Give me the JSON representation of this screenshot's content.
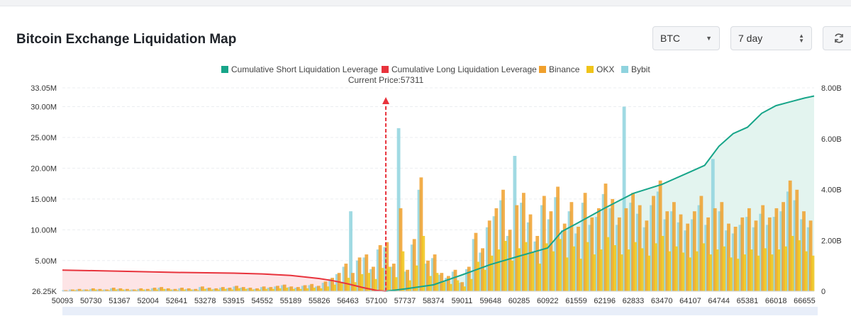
{
  "header": {
    "title": "Bitcoin Exchange Liquidation Map",
    "coin_select": "BTC",
    "range_select": "7 day"
  },
  "colors": {
    "short_line": "#17a589",
    "long_line": "#e8333c",
    "binance": "#f0a02c",
    "okx": "#f0c419",
    "bybit": "#8fd3de",
    "short_fill": "#e3f4ef",
    "long_fill": "#fde4e6",
    "current_price_marker": "#e8333c"
  },
  "chart_data": {
    "type": "bar",
    "legend": {
      "position": "top",
      "items": [
        {
          "name": "Cumulative Short Liquidation Leverage",
          "color": "#17a589"
        },
        {
          "name": "Cumulative Long Liquidation Leverage",
          "color": "#e8333c"
        },
        {
          "name": "Binance",
          "color": "#f0a02c"
        },
        {
          "name": "OKX",
          "color": "#f0c419"
        },
        {
          "name": "Bybit",
          "color": "#8fd3de"
        }
      ]
    },
    "current_price_label": "Current Price:57311",
    "current_price": 57311,
    "x_range": [
      50093,
      66869
    ],
    "x_ticks": [
      50093,
      50730,
      51367,
      52004,
      52641,
      53278,
      53915,
      54552,
      55189,
      55826,
      56463,
      57100,
      57737,
      58374,
      59011,
      59648,
      60285,
      60922,
      61559,
      62196,
      62833,
      63470,
      64107,
      64744,
      65381,
      66018,
      66655
    ],
    "y_left_ticks": [
      "33.05M",
      "30.00M",
      "25.00M",
      "20.00M",
      "15.00M",
      "10.00M",
      "5.00M",
      "26.25K"
    ],
    "y_left_tick_values": [
      33050000,
      30000000,
      25000000,
      20000000,
      15000000,
      10000000,
      5000000,
      26250
    ],
    "y_left_range": [
      26250,
      33050000
    ],
    "y_right_ticks": [
      "8.00B",
      "6.00B",
      "4.00B",
      "2.00B",
      "0"
    ],
    "y_right_tick_values": [
      8000000000,
      6000000000,
      4000000000,
      2000000000,
      0
    ],
    "y_right_range": [
      0,
      8000000000
    ],
    "grid": true,
    "cumulative_long": {
      "name": "Cumulative Long Liquidation Leverage",
      "x": [
        50093,
        51367,
        52641,
        53915,
        54552,
        55189,
        55826,
        56144,
        56463,
        56782,
        57100,
        57311
      ],
      "y": [
        830000000,
        790000000,
        740000000,
        710000000,
        680000000,
        620000000,
        500000000,
        410000000,
        290000000,
        150000000,
        30000000,
        0
      ]
    },
    "cumulative_short": {
      "name": "Cumulative Short Liquidation Leverage",
      "x": [
        57311,
        57737,
        58374,
        59011,
        59648,
        60285,
        60922,
        61240,
        61559,
        62196,
        62833,
        63470,
        64107,
        64426,
        64744,
        65062,
        65381,
        65700,
        66018,
        66337,
        66655,
        66869
      ],
      "y": [
        0,
        90000000,
        250000000,
        640000000,
        1050000000,
        1380000000,
        1700000000,
        2350000000,
        2650000000,
        3270000000,
        3850000000,
        4200000000,
        4700000000,
        4950000000,
        5700000000,
        6200000000,
        6450000000,
        7000000000,
        7300000000,
        7450000000,
        7600000000,
        7680000000
      ]
    },
    "exchange_bars": {
      "bin_start": 50093,
      "bin_width": 152.5,
      "binance": [
        0.2,
        0.3,
        0.4,
        0.3,
        0.5,
        0.4,
        0.3,
        0.6,
        0.5,
        0.4,
        0.3,
        0.5,
        0.4,
        0.6,
        0.7,
        0.5,
        0.4,
        0.6,
        0.5,
        0.4,
        0.8,
        0.6,
        0.5,
        0.7,
        0.6,
        0.9,
        0.7,
        0.6,
        0.5,
        0.8,
        0.7,
        0.9,
        1.1,
        0.8,
        0.7,
        1.0,
        1.2,
        0.9,
        1.6,
        2.2,
        3.0,
        4.5,
        3.0,
        5.5,
        6.0,
        4.0,
        7.5,
        8.0,
        4.5,
        13.5,
        3.5,
        8.5,
        18.5,
        5.0,
        6.0,
        3.0,
        2.5,
        3.5,
        1.5,
        4.0,
        9.5,
        7.0,
        11.5,
        13.5,
        16.5,
        10.0,
        14.0,
        16.0,
        12.5,
        9.0,
        15.5,
        13.0,
        17.0,
        11.0,
        14.5,
        10.5,
        16.0,
        12.0,
        13.5,
        17.5,
        15.0,
        12.0,
        13.5,
        16.0,
        14.0,
        11.5,
        15.5,
        18.0,
        13.0,
        14.5,
        12.5,
        11.0,
        13.0,
        15.5,
        12.0,
        13.5,
        14.5,
        11.0,
        10.5,
        12.0,
        13.5,
        11.5,
        14.0,
        12.0,
        13.5,
        14.5,
        18.0,
        16.5,
        13.0,
        11.5
      ],
      "okx": [
        0.1,
        0.2,
        0.2,
        0.2,
        0.3,
        0.2,
        0.2,
        0.3,
        0.3,
        0.2,
        0.2,
        0.3,
        0.2,
        0.3,
        0.4,
        0.3,
        0.2,
        0.3,
        0.3,
        0.2,
        0.4,
        0.3,
        0.3,
        0.4,
        0.3,
        0.5,
        0.4,
        0.3,
        0.3,
        0.4,
        0.4,
        0.5,
        0.6,
        0.4,
        0.4,
        0.5,
        0.6,
        0.5,
        0.8,
        1.1,
        1.5,
        2.2,
        1.5,
        2.8,
        3.0,
        2.0,
        3.8,
        4.0,
        2.3,
        6.5,
        1.8,
        4.2,
        9.0,
        2.5,
        3.0,
        1.5,
        1.2,
        1.8,
        0.8,
        2.0,
        4.8,
        3.5,
        5.8,
        6.8,
        8.2,
        5.0,
        7.0,
        8.0,
        6.3,
        4.5,
        7.8,
        6.5,
        8.5,
        5.5,
        7.3,
        5.3,
        8.0,
        6.0,
        6.8,
        8.8,
        7.5,
        6.0,
        6.8,
        8.0,
        7.0,
        5.8,
        7.8,
        9.0,
        6.5,
        7.3,
        6.3,
        5.5,
        6.5,
        7.8,
        6.0,
        6.8,
        7.3,
        5.5,
        5.3,
        6.0,
        6.8,
        5.8,
        7.0,
        6.0,
        6.8,
        7.3,
        9.0,
        8.3,
        6.5,
        5.8
      ],
      "bybit": [
        0.2,
        0.3,
        0.3,
        0.3,
        0.4,
        0.3,
        0.3,
        0.5,
        0.4,
        0.3,
        0.3,
        0.4,
        0.3,
        0.5,
        0.6,
        0.4,
        0.3,
        0.5,
        0.4,
        0.3,
        0.7,
        0.5,
        0.4,
        0.6,
        0.5,
        0.8,
        0.6,
        0.5,
        0.4,
        0.7,
        0.6,
        0.8,
        1.0,
        0.7,
        0.6,
        0.9,
        1.0,
        0.8,
        1.4,
        2.0,
        2.8,
        4.0,
        13.0,
        5.0,
        5.5,
        3.6,
        6.8,
        7.2,
        4.0,
        26.5,
        3.2,
        7.6,
        16.5,
        4.5,
        5.4,
        2.7,
        2.2,
        3.2,
        1.4,
        3.6,
        8.5,
        6.3,
        10.4,
        12.2,
        14.8,
        9.0,
        22.0,
        14.4,
        11.2,
        8.1,
        14.0,
        11.7,
        15.3,
        9.9,
        13.0,
        9.4,
        14.4,
        10.8,
        12.1,
        15.8,
        13.5,
        10.8,
        30.0,
        14.4,
        12.6,
        10.4,
        14.0,
        16.2,
        11.7,
        13.0,
        11.2,
        9.9,
        11.7,
        14.0,
        10.8,
        21.5,
        13.0,
        9.9,
        9.4,
        10.8,
        12.1,
        10.4,
        12.6,
        10.8,
        12.1,
        13.0,
        16.2,
        14.8,
        11.7,
        10.4
      ]
    }
  }
}
